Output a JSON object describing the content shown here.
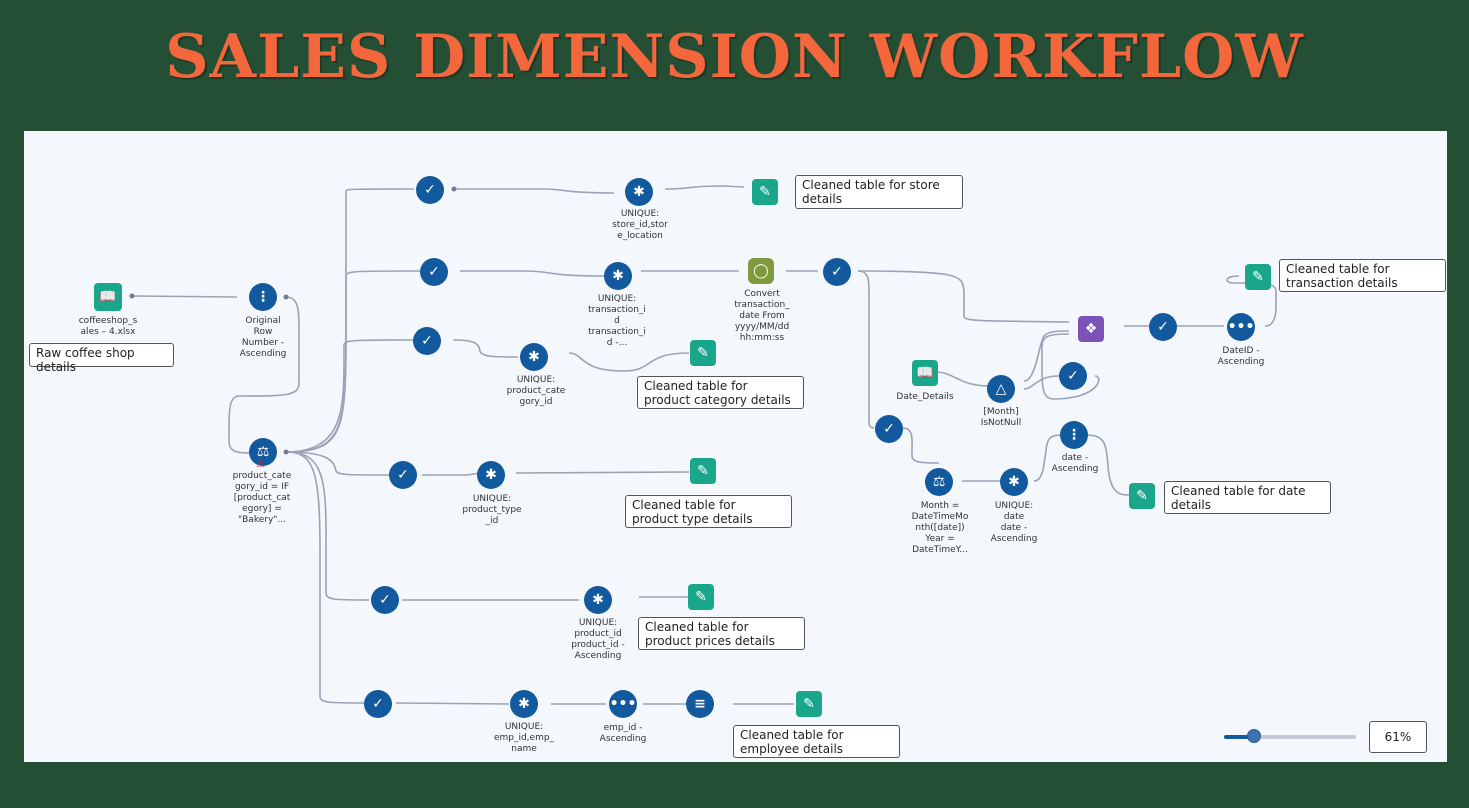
{
  "title": "SALES DIMENSION WORKFLOW",
  "zoom": {
    "label": "61%",
    "value": 0.61
  },
  "tool_labels": {
    "input_file": "coffeeshop_s\nales – 4.xlsx",
    "sort_row": "Original\nRow\nNumber -\nAscending",
    "formula_cat": "product_cate\ngory_id = IF\n[product_cat\negory] =\n\"Bakery\"...",
    "unique_store": "UNIQUE:\nstore_id,stor\ne_location",
    "unique_trans": "UNIQUE:\ntransaction_i\nd\ntransaction_i\nd -...",
    "convert_date": "Convert\ntransaction_\ndate From\nyyyy/MM/dd\nhh:mm:ss",
    "unique_cat": "UNIQUE:\nproduct_cate\ngory_id",
    "unique_type": "UNIQUE:\nproduct_type\n_id",
    "unique_prod": "UNIQUE:\nproduct_id\nproduct_id -\nAscending",
    "unique_emp": "UNIQUE:\nemp_id,emp_\nname",
    "sort_emp": "emp_id -\nAscending",
    "date_details": "Date_Details",
    "filter_month": "[Month]\nIsNotNull",
    "sort_dateid": "DateID -\nAscending",
    "formula_month": "Month =\nDateTimeMo\nnth([date])\nYear =\nDateTimeY...",
    "unique_date": "UNIQUE:\ndate\ndate -\nAscending",
    "sort_date": "date -\nAscending"
  },
  "notes": {
    "raw": "Raw coffee shop details",
    "store": "Cleaned table for store details",
    "transaction": "Cleaned table for transaction details",
    "category": "Cleaned table for product category details",
    "type": "Cleaned table for product type details",
    "prices": "Cleaned table for product prices details",
    "date": "Cleaned table for date details",
    "employee": "Cleaned table for employee details"
  },
  "colors": {
    "background": "#254f34",
    "title": "#f4673c",
    "tool_blue": "#12599e",
    "tool_green": "#1aa68b",
    "tool_olive": "#7f9a3c",
    "tool_purple": "#7b52b5",
    "wire": "#9aa3b5"
  },
  "icons": {
    "input": "book-icon",
    "sort": "sort-dots-icon",
    "formula": "flask-icon",
    "select": "select-check-icon",
    "unique": "snowflake-icon",
    "output": "output-pen-icon",
    "datetime": "datetime-icon",
    "join": "join-icon",
    "filter": "filter-icon",
    "record": "record-id-icon",
    "summarize": "summarize-icon"
  }
}
